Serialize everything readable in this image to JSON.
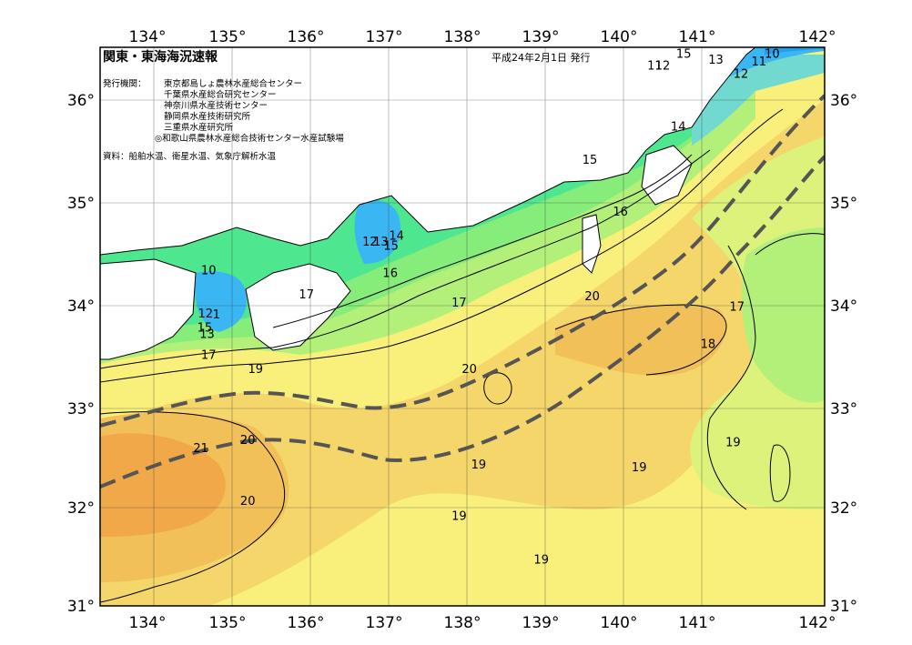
{
  "header": {
    "title": "関東・東海海況速報",
    "date": "平成24年2月1日 発行",
    "issuer_label": "発行機関：",
    "issuers": [
      "東京都島しょ農林水産総合センター",
      "千葉県水産総合研究センター",
      "神奈川県水産技術センター",
      "静岡県水産技術研究所",
      "三重県水産研究所",
      "◎和歌山県農林水産総合技術センター水産試験場"
    ],
    "sources": "資料：船舶水温、衛星水温、気象庁解析水温"
  },
  "axes": {
    "lon_labels": [
      "134°",
      "135°",
      "136°",
      "137°",
      "138°",
      "139°",
      "140°",
      "141°",
      "142°"
    ],
    "lat_labels": [
      "36°",
      "35°",
      "34°",
      "33°",
      "32°",
      "31°"
    ]
  },
  "temperature_labels": [
    {
      "text": "10",
      "lon": 134.7,
      "lat": 34.28
    },
    {
      "text": "12",
      "lon": 134.66,
      "lat": 33.85
    },
    {
      "text": "1",
      "lon": 134.8,
      "lat": 33.84
    },
    {
      "text": "15",
      "lon": 134.65,
      "lat": 33.71
    },
    {
      "text": "13",
      "lon": 134.68,
      "lat": 33.65
    },
    {
      "text": "17",
      "lon": 134.7,
      "lat": 33.44
    },
    {
      "text": "19",
      "lon": 135.3,
      "lat": 33.3
    },
    {
      "text": "21",
      "lon": 134.6,
      "lat": 32.52
    },
    {
      "text": "20",
      "lon": 135.2,
      "lat": 32.6
    },
    {
      "text": "20",
      "lon": 135.2,
      "lat": 32.0
    },
    {
      "text": "17",
      "lon": 135.95,
      "lat": 34.04
    },
    {
      "text": "12",
      "lon": 136.76,
      "lat": 34.56
    },
    {
      "text": "13",
      "lon": 136.9,
      "lat": 34.56
    },
    {
      "text": "14",
      "lon": 137.1,
      "lat": 34.62
    },
    {
      "text": "15",
      "lon": 137.03,
      "lat": 34.52
    },
    {
      "text": "16",
      "lon": 137.02,
      "lat": 34.25
    },
    {
      "text": "17",
      "lon": 137.9,
      "lat": 33.96
    },
    {
      "text": "20",
      "lon": 138.03,
      "lat": 33.3
    },
    {
      "text": "19",
      "lon": 138.15,
      "lat": 32.36
    },
    {
      "text": "19",
      "lon": 137.9,
      "lat": 31.85
    },
    {
      "text": "19",
      "lon": 138.95,
      "lat": 31.42
    },
    {
      "text": "15",
      "lon": 139.57,
      "lat": 35.37
    },
    {
      "text": "16",
      "lon": 139.96,
      "lat": 34.86
    },
    {
      "text": "20",
      "lon": 139.6,
      "lat": 34.02
    },
    {
      "text": "19",
      "lon": 140.2,
      "lat": 32.33
    },
    {
      "text": "14",
      "lon": 140.7,
      "lat": 35.7
    },
    {
      "text": "18",
      "lon": 141.08,
      "lat": 33.55
    },
    {
      "text": "17",
      "lon": 141.45,
      "lat": 33.92
    },
    {
      "text": "19",
      "lon": 141.4,
      "lat": 32.58
    },
    {
      "text": "11",
      "lon": 140.4,
      "lat": 36.3
    },
    {
      "text": "12",
      "lon": 140.5,
      "lat": 36.3
    },
    {
      "text": "15",
      "lon": 140.77,
      "lat": 36.42
    },
    {
      "text": "13",
      "lon": 141.18,
      "lat": 36.36
    },
    {
      "text": "12",
      "lon": 141.5,
      "lat": 36.22
    },
    {
      "text": "11",
      "lon": 141.73,
      "lat": 36.34
    },
    {
      "text": "10",
      "lon": 141.9,
      "lat": 36.42
    }
  ],
  "colors": {
    "t10": "#1e9ff0",
    "t12": "#3ab7f2",
    "t14": "#72d9d0",
    "t15": "#4fe690",
    "t16": "#86ec7a",
    "t17": "#b3f07a",
    "t18": "#dcf27a",
    "t19": "#f8f07a",
    "t19b": "#f5d66a",
    "t20": "#f2c058",
    "t21": "#f0a848",
    "land": "#ffffff",
    "kuroshio": "#555555"
  }
}
